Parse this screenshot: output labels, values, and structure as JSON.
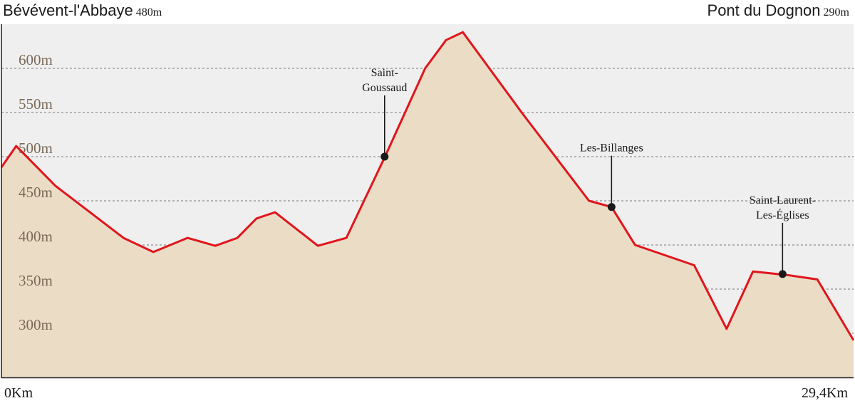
{
  "header": {
    "start_name": "Bévévent-l'Abbaye",
    "start_alt": "480m",
    "end_name": "Pont du Dognon",
    "end_alt": "290m"
  },
  "axis": {
    "start_km_label": "0Km",
    "end_km_label": "29,4Km"
  },
  "colors": {
    "area_fill": "#ebdcc6",
    "line": "#e0161c",
    "plot_bg": "#efefef",
    "grid": "#b3b3b3",
    "tick_text": "#7a6a58"
  },
  "chart_data": {
    "type": "area",
    "xlabel": "",
    "ylabel": "",
    "xlim": [
      0,
      29.4
    ],
    "ylim": [
      240,
      645
    ],
    "grid": true,
    "y_ticks": [
      {
        "value": 300,
        "label": "300m"
      },
      {
        "value": 350,
        "label": "350m"
      },
      {
        "value": 400,
        "label": "400m"
      },
      {
        "value": 450,
        "label": "450m"
      },
      {
        "value": 500,
        "label": "500m"
      },
      {
        "value": 550,
        "label": "550m"
      },
      {
        "value": 600,
        "label": "600m"
      }
    ],
    "x": [
      0,
      0.51,
      1.86,
      4.21,
      5.24,
      6.42,
      7.38,
      8.14,
      8.8,
      9.44,
      10.92,
      11.9,
      13.22,
      14.62,
      15.34,
      15.92,
      17.95,
      20.27,
      21.05,
      21.86,
      23.9,
      25.02,
      25.93,
      27.1,
      28.15,
      29.4
    ],
    "y": [
      488,
      512,
      467,
      408,
      392,
      408,
      399,
      408,
      430,
      437,
      399,
      408,
      499,
      600,
      632,
      641,
      550,
      450,
      443,
      400,
      377,
      305,
      370,
      366,
      361,
      292
    ],
    "waypoints": [
      {
        "name_lines": [
          "Saint-",
          "Goussaud"
        ],
        "x": 13.22,
        "y": 500
      },
      {
        "name_lines": [
          "Les-Billanges"
        ],
        "x": 21.05,
        "y": 443
      },
      {
        "name_lines": [
          "Saint-Laurent-",
          "Les-Églises"
        ],
        "x": 26.95,
        "y": 367
      }
    ]
  }
}
